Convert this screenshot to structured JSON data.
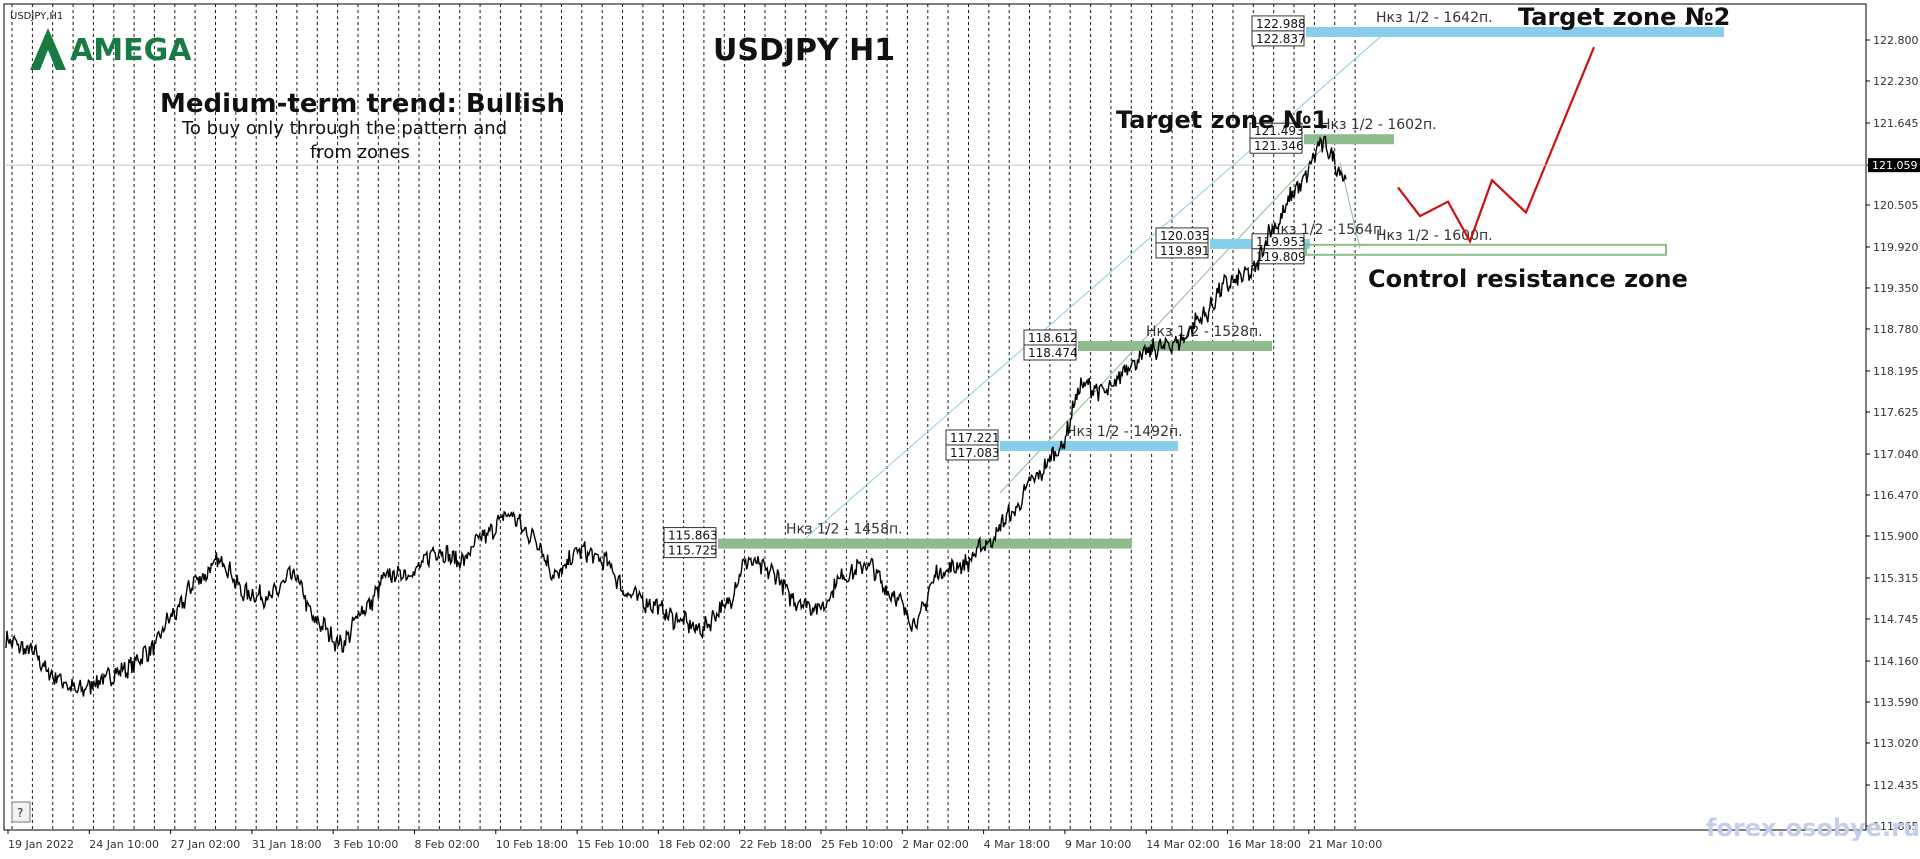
{
  "window": {
    "symbol_label": "USDJPY,H1",
    "help_button_label": "?",
    "watermark": "forex.osobye.ru"
  },
  "logo": {
    "text": "AMEGA"
  },
  "annotations": {
    "title": "USDJPY H1",
    "trend": "Medium-term trend: Bullish",
    "trend_note_line1": "To buy only through the pattern  and",
    "trend_note_line2": "from zones",
    "target_zone_1": "Target zone №1",
    "target_zone_2": "Target zone №2",
    "control_zone": "Control resistance zone"
  },
  "colors": {
    "price_line": "#000000",
    "grid": "#000000",
    "blue_zone": "#87ceeb",
    "green_zone": "#8fbc8f",
    "forecast_line": "#cc1111",
    "price_tag_bg": "#000000",
    "logo": "#1a7a44",
    "helper_line_blue": "#87ceeb",
    "helper_line_green": "#8fbc8f"
  },
  "zones": [
    {
      "label": "Нкз 1/2 - 1458п.",
      "top": "115.863",
      "bottom": "115.725",
      "color": "green"
    },
    {
      "label": "Нкз 1/2 - 1492п.",
      "top": "117.221",
      "bottom": "117.083",
      "color": "blue"
    },
    {
      "label": "Нкз 1/2 - 1528п.",
      "top": "118.612",
      "bottom": "118.474",
      "color": "green"
    },
    {
      "label": "Нкз 1/2 - 1564п.",
      "top": "120.035",
      "bottom": "119.891",
      "color": "blue"
    },
    {
      "label": "Нкз 1/2 - 1600п.",
      "top": "119.953",
      "bottom": "119.809",
      "color": "outline"
    },
    {
      "label": "Нкз 1/2 - 1602п.",
      "top": "121.493",
      "bottom": "121.346",
      "color": "green"
    },
    {
      "label": "Нкз 1/2 - 1642п.",
      "top": "122.988",
      "bottom": "122.837",
      "color": "blue"
    }
  ],
  "chart_data": {
    "type": "line",
    "symbol": "USDJPY",
    "timeframe": "H1",
    "current_price": "121.059",
    "y_ticks": [
      "122.800",
      "122.230",
      "121.645",
      "121.059",
      "120.505",
      "119.920",
      "119.350",
      "118.780",
      "118.195",
      "117.625",
      "117.040",
      "116.470",
      "115.900",
      "115.315",
      "114.745",
      "114.160",
      "113.590",
      "113.020",
      "112.435",
      "111.865"
    ],
    "x_ticks": [
      "19 Jan 2022",
      "24 Jan 10:00",
      "27 Jan 02:00",
      "31 Jan 18:00",
      "3 Feb 10:00",
      "8 Feb 02:00",
      "10 Feb 18:00",
      "15 Feb 10:00",
      "18 Feb 02:00",
      "22 Feb 18:00",
      "25 Feb 10:00",
      "2 Mar 02:00",
      "4 Mar 18:00",
      "9 Mar 10:00",
      "14 Mar 02:00",
      "16 Mar 18:00",
      "21 Mar 10:00"
    ],
    "ylim": [
      111.8,
      123.3
    ],
    "series": [
      {
        "values": [
          114.45,
          114.3,
          113.95,
          113.75,
          113.9,
          114.05,
          114.3,
          114.8,
          115.3,
          115.55,
          115.1,
          115.05,
          115.35,
          114.7,
          114.4,
          114.9,
          115.35,
          115.4,
          115.7,
          115.55,
          115.9,
          116.2,
          115.9,
          115.35,
          115.7,
          115.55,
          115.1,
          114.95,
          114.75,
          114.6,
          114.9,
          115.55,
          115.4,
          115.0,
          114.9,
          115.35,
          115.5,
          115.1,
          114.7,
          115.4,
          115.5,
          115.8,
          116.2,
          116.7,
          117.1,
          118.0,
          117.9,
          118.3,
          118.5,
          118.6,
          118.95,
          119.4,
          119.55,
          120.2,
          120.75,
          121.35,
          120.9
        ]
      }
    ],
    "forecast_values": [
      120.75,
      120.35,
      120.55,
      120.0,
      120.85,
      120.4,
      122.7
    ]
  }
}
